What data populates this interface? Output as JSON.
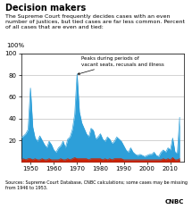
{
  "chart_data": {
    "type": "area",
    "title": "Decision makers",
    "subtitle": "The Supreme Court frequently decides cases with an even number of justices, but tied cases are far less common. Percent of all cases that are even and tied:",
    "y_label": "100%",
    "source": "Sources: Supreme Court Database, CNBC calculations; some cases may be missing\nfrom 1946 to 1953.",
    "credit": "CNBC",
    "annotations": [
      {
        "text": "Peaks during periods of\nvacant seats, recusals and illness",
        "x": 1969.0,
        "y": 80
      }
    ],
    "x": [
      1946,
      1947,
      1948,
      1949,
      1950,
      1951,
      1952,
      1953,
      1954,
      1955,
      1956,
      1957,
      1958,
      1959,
      1960,
      1961,
      1962,
      1963,
      1964,
      1965,
      1966,
      1967,
      1968,
      1969,
      1970,
      1971,
      1972,
      1973,
      1974,
      1975,
      1976,
      1977,
      1978,
      1979,
      1980,
      1981,
      1982,
      1983,
      1984,
      1985,
      1986,
      1987,
      1988,
      1989,
      1990,
      1991,
      1992,
      1993,
      1994,
      1995,
      1996,
      1997,
      1998,
      1999,
      2000,
      2001,
      2002,
      2003,
      2004,
      2005,
      2006,
      2007,
      2008,
      2009,
      2010,
      2011,
      2012,
      2013,
      2014
    ],
    "series": [
      {
        "color": "#2d9fd9",
        "values": [
          22,
          24,
          26,
          30,
          68,
          32,
          22,
          19,
          24,
          20,
          16,
          13,
          19,
          16,
          11,
          9,
          13,
          15,
          19,
          13,
          21,
          23,
          30,
          44,
          81,
          46,
          36,
          31,
          26,
          23,
          31,
          29,
          21,
          23,
          26,
          21,
          19,
          23,
          21,
          17,
          19,
          23,
          21,
          19,
          15,
          11,
          9,
          13,
          9,
          7,
          6,
          7,
          6,
          5,
          6,
          7,
          7,
          9,
          6,
          5,
          9,
          11,
          9,
          13,
          11,
          22,
          9,
          8,
          41
        ]
      },
      {
        "color": "#cc2200",
        "values": [
          2,
          3,
          2,
          3,
          3,
          2,
          3,
          2,
          2,
          3,
          2,
          2,
          3,
          2,
          2,
          2,
          2,
          3,
          2,
          2,
          3,
          2,
          3,
          4,
          3,
          3,
          3,
          3,
          3,
          2,
          3,
          3,
          3,
          3,
          3,
          2,
          3,
          2,
          3,
          2,
          3,
          3,
          3,
          3,
          2,
          2,
          2,
          2,
          2,
          2,
          2,
          2,
          2,
          2,
          2,
          2,
          2,
          2,
          2,
          2,
          2,
          3,
          2,
          3,
          2,
          4,
          2,
          2,
          3
        ]
      }
    ],
    "xlim": [
      1946,
      2016
    ],
    "xticks": [
      1950,
      1960,
      1970,
      1980,
      1990,
      2000,
      2010
    ],
    "ylim": [
      0,
      100
    ],
    "yticks": [
      20,
      40,
      60,
      80,
      100
    ],
    "grid": true
  }
}
